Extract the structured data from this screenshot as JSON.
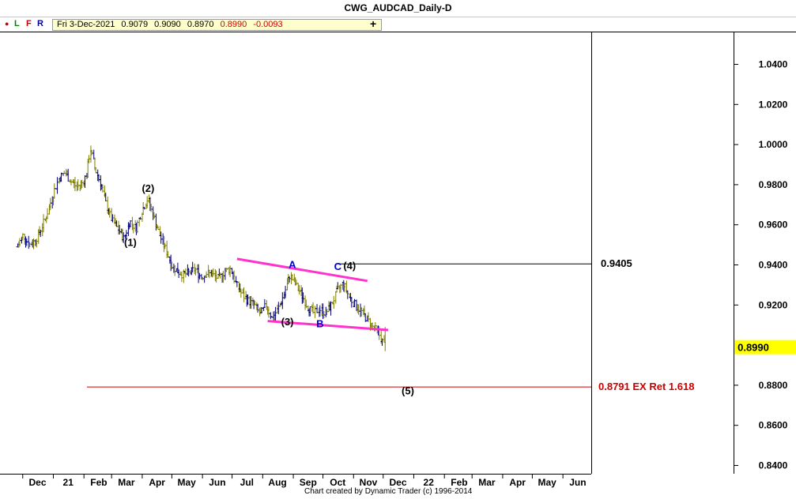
{
  "window": {
    "title": "CWG_AUDCAD_Daily-D"
  },
  "toolbar": {
    "buttons": [
      {
        "name": "dot",
        "label": "●"
      },
      {
        "name": "L",
        "label": "L"
      },
      {
        "name": "F",
        "label": "F"
      },
      {
        "name": "R",
        "label": "R"
      }
    ],
    "info": {
      "date": "Fri 3-Dec-2021",
      "open": "0.9079",
      "high": "0.9090",
      "low": "0.8970",
      "close": "0.8990",
      "change": "-0.0093"
    },
    "plus_label": "+"
  },
  "footer": {
    "credit": "Chart created by Dynamic Trader  (c) 1996-2014"
  },
  "colors": {
    "bars": "#808000",
    "bars_dark": "#000080",
    "channel": "#ff33cc",
    "target_line": "#cc0000",
    "level_line": "#000000",
    "price_highlight": "#ffff00",
    "wave_label": "#000000",
    "abc_label": "#0000cc"
  },
  "chart_data": {
    "type": "ohlc",
    "title": "CWG_AUDCAD_Daily-D",
    "y_ticks": [
      "0.8400",
      "0.8600",
      "0.8800",
      "0.9000",
      "0.9200",
      "0.9400",
      "0.9600",
      "0.9800",
      "1.0000",
      "1.0200",
      "1.0400"
    ],
    "ylim": [
      0.838,
      1.055
    ],
    "x_ticks": [
      "Dec",
      "21",
      "Feb",
      "Mar",
      "Apr",
      "May",
      "Jun",
      "Jul",
      "Aug",
      "Sep",
      "Oct",
      "Nov",
      "Dec",
      "22",
      "Feb",
      "Mar",
      "Apr",
      "May",
      "Jun"
    ],
    "last_price": "0.8990",
    "series": [
      {
        "x": [
          "2020-11-26",
          "2020-12-02",
          "2020-12-08",
          "2020-12-14",
          "2020-12-20",
          "2020-12-26",
          "2021-01-01",
          "2021-01-07",
          "2021-01-13",
          "2021-01-19",
          "2021-01-25",
          "2021-01-31",
          "2021-02-04",
          "2021-02-08",
          "2021-02-12",
          "2021-02-18",
          "2021-02-24",
          "2021-03-02",
          "2021-03-08",
          "2021-03-14",
          "2021-03-20",
          "2021-03-26",
          "2021-04-01",
          "2021-04-07",
          "2021-04-13",
          "2021-04-19",
          "2021-04-25",
          "2021-05-01",
          "2021-05-07",
          "2021-05-13",
          "2021-05-19",
          "2021-05-25",
          "2021-05-31",
          "2021-06-06",
          "2021-06-12",
          "2021-06-18",
          "2021-06-24",
          "2021-06-30",
          "2021-07-06",
          "2021-07-12",
          "2021-07-18",
          "2021-07-24",
          "2021-07-30",
          "2021-08-05",
          "2021-08-11",
          "2021-08-17",
          "2021-08-23",
          "2021-08-29",
          "2021-09-04",
          "2021-09-10",
          "2021-09-16",
          "2021-09-22",
          "2021-09-28",
          "2021-10-04",
          "2021-10-10",
          "2021-10-16",
          "2021-10-22",
          "2021-10-28",
          "2021-11-03",
          "2021-11-09",
          "2021-11-15",
          "2021-11-21",
          "2021-11-27",
          "2021-12-03"
        ],
        "close": [
          0.949,
          0.955,
          0.95,
          0.952,
          0.958,
          0.965,
          0.975,
          0.983,
          0.986,
          0.982,
          0.979,
          0.981,
          0.985,
          0.998,
          0.989,
          0.981,
          0.97,
          0.962,
          0.958,
          0.953,
          0.962,
          0.958,
          0.967,
          0.973,
          0.964,
          0.955,
          0.948,
          0.94,
          0.937,
          0.935,
          0.936,
          0.938,
          0.934,
          0.936,
          0.935,
          0.933,
          0.937,
          0.938,
          0.93,
          0.925,
          0.922,
          0.92,
          0.915,
          0.92,
          0.913,
          0.918,
          0.925,
          0.935,
          0.93,
          0.925,
          0.919,
          0.916,
          0.918,
          0.916,
          0.92,
          0.927,
          0.931,
          0.924,
          0.92,
          0.917,
          0.913,
          0.909,
          0.906,
          0.899
        ]
      }
    ],
    "annotations": [
      {
        "label": "(1)",
        "date": "2021-03-20",
        "price": 0.951
      },
      {
        "label": "(2)",
        "date": "2021-04-07",
        "price": 0.978
      },
      {
        "label": "(3)",
        "date": "2021-08-26",
        "price": 0.9115
      },
      {
        "label": "(4)",
        "date": "2021-10-28",
        "price": 0.9395
      },
      {
        "label": "(5)",
        "date": "2021-12-26",
        "price": 0.877
      },
      {
        "label": "A",
        "date": "2021-08-31",
        "price": 0.94
      },
      {
        "label": "B",
        "date": "2021-09-28",
        "price": 0.9105
      },
      {
        "label": "C",
        "date": "2021-10-16",
        "price": 0.939
      }
    ],
    "levels": [
      {
        "label": "0.9405",
        "price": 0.9405,
        "from": "2021-10-16"
      },
      {
        "label": "0.8791 EX Ret 1.618",
        "price": 0.8791,
        "from": "2021-02-04"
      }
    ],
    "trendlines": [
      {
        "from": {
          "date": "2021-07-06",
          "price": 0.943
        },
        "to": {
          "date": "2021-11-15",
          "price": 0.932
        }
      },
      {
        "from": {
          "date": "2021-08-06",
          "price": 0.912
        },
        "to": {
          "date": "2021-12-06",
          "price": 0.9075
        }
      }
    ]
  }
}
